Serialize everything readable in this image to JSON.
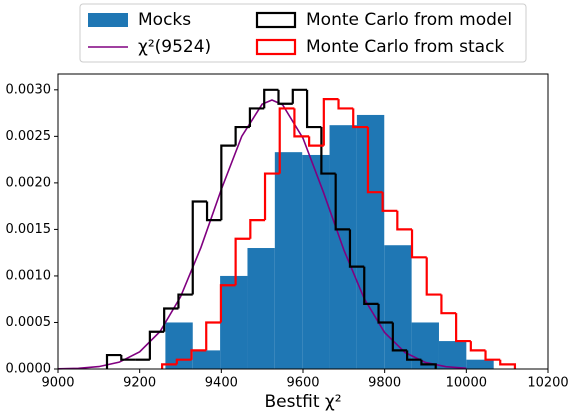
{
  "chart_data": {
    "type": "histogram",
    "x_label": "Bestfit χ²",
    "xlim": [
      9000,
      10200
    ],
    "xticks": [
      9000,
      9200,
      9400,
      9600,
      9800,
      10000,
      10200
    ],
    "ylim": [
      0,
      0.00317
    ],
    "yticks": [
      {
        "value": 0,
        "label": "0.0000"
      },
      {
        "value": 0.0005,
        "label": "0.0005"
      },
      {
        "value": 0.001,
        "label": "0.0010"
      },
      {
        "value": 0.0015,
        "label": "0.0015"
      },
      {
        "value": 0.002,
        "label": "0.0020"
      },
      {
        "value": 0.0025,
        "label": "0.0025"
      },
      {
        "value": 0.003,
        "label": "0.0030"
      }
    ],
    "legend": "upper center",
    "series": [
      {
        "name": "Mocks",
        "type": "bar",
        "color": "#1f77b4",
        "bins": [
          9263,
          9330,
          9397,
          9464,
          9531,
          9598,
          9665,
          9732,
          9799,
          9866,
          9933,
          10000,
          10067
        ],
        "values": [
          0.0005,
          0.0002,
          0.001,
          0.0013,
          0.00233,
          0.0023,
          0.00262,
          0.00273,
          0.00133,
          0.0005,
          0.0003,
          0.0001
        ]
      },
      {
        "name": "χ²(9524)",
        "type": "line",
        "color": "#800080",
        "x": [
          9000,
          9050,
          9100,
          9150,
          9200,
          9250,
          9300,
          9350,
          9400,
          9450,
          9500,
          9524,
          9550,
          9600,
          9650,
          9700,
          9750,
          9800,
          9850,
          9900,
          9950,
          10000
        ],
        "values": [
          2e-06,
          7.9e-06,
          2.58e-05,
          7.34e-05,
          0.000184,
          0.000403,
          0.000775,
          0.001305,
          0.00193,
          0.0025,
          0.002846,
          0.00289,
          0.00284,
          0.00248,
          0.0019,
          0.00128,
          0.000756,
          0.000391,
          0.000177,
          7.06e-05,
          2.47e-05,
          7.5e-06
        ]
      },
      {
        "name": "Monte Carlo from model",
        "type": "step",
        "color": "#000000",
        "bins": [
          9120,
          9155,
          9190,
          9225,
          9260,
          9295,
          9330,
          9365,
          9400,
          9435,
          9470,
          9505,
          9540,
          9575,
          9610,
          9645,
          9680,
          9715,
          9750,
          9785,
          9820,
          9855,
          9890,
          9925
        ],
        "values": [
          0.00015,
          0.0001,
          0.0001,
          0.0004,
          0.00065,
          0.0008,
          0.0018,
          0.0016,
          0.0024,
          0.0026,
          0.0028,
          0.003,
          0.00285,
          0.003,
          0.0026,
          0.0021,
          0.0015,
          0.0011,
          0.0007,
          0.0005,
          0.0002,
          0.0001,
          5e-05
        ]
      },
      {
        "name": "Monte Carlo from stack",
        "type": "step",
        "color": "#ff0000",
        "bins": [
          9255,
          9291,
          9327,
          9363,
          9399,
          9435,
          9471,
          9507,
          9543,
          9579,
          9615,
          9651,
          9687,
          9723,
          9759,
          9795,
          9831,
          9867,
          9903,
          9939,
          9975,
          10011,
          10047,
          10083,
          10119
        ],
        "values": [
          5e-05,
          0.0001,
          0.0002,
          0.0005,
          0.0009,
          0.0014,
          0.0016,
          0.0021,
          0.0028,
          0.0025,
          0.0024,
          0.0029,
          0.0028,
          0.0026,
          0.0019,
          0.0017,
          0.0015,
          0.0012,
          0.0008,
          0.0006,
          0.0003,
          0.0002,
          0.0001,
          5e-05
        ]
      }
    ]
  }
}
